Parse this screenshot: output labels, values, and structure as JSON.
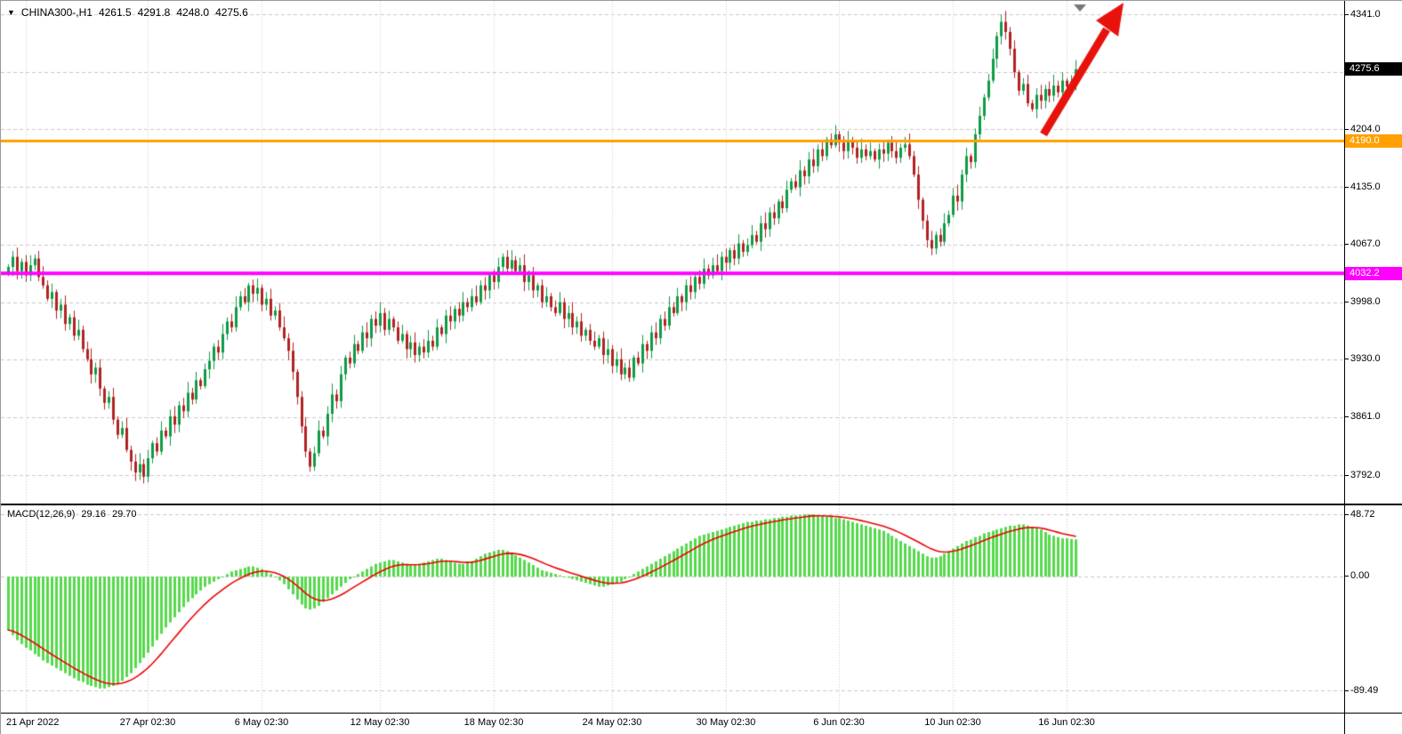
{
  "header": {
    "collapse_glyph": "▼",
    "symbol_period": "CHINA300-,H1",
    "open": "4261.5",
    "high": "4291.8",
    "low": "4248.0",
    "close": "4275.6"
  },
  "colors": {
    "background": "#FFFFFF",
    "grid": "#C9C9C9",
    "bull": "#0E9B45",
    "bear": "#B22222",
    "macd_hist": "#56D94C",
    "macd_signal": "#EE0000",
    "current_tag_bg": "#000000",
    "arrow": "#E8120C",
    "shift_marker": "#777777"
  },
  "chart_data": {
    "type": "candlestick_with_macd",
    "title": "CHINA300-,H1",
    "price_panel": {
      "range": [
        3758,
        4357
      ],
      "grid_values": [
        4341.0,
        4272.5,
        4204.0,
        4135.0,
        4067.0,
        3998.0,
        3930.0,
        3861.0,
        3792.0
      ],
      "y_axis": {
        "labels": [
          "4341.0",
          "4204.0",
          "4135.0",
          "4067.0",
          "3998.0",
          "3930.0",
          "3861.0",
          "3792.0"
        ]
      },
      "current_price": 4275.6,
      "current_price_label": "4275.6",
      "hlines": [
        {
          "value": 4190.0,
          "label": "4190.0",
          "color": "#FFA000",
          "width": 3
        },
        {
          "value": 4032.2,
          "label": "4032.2",
          "color": "#FF00FF",
          "width": 4
        }
      ],
      "first_open": 4032,
      "closes": [
        4040,
        4052,
        4035,
        4046,
        4030,
        4042,
        4050,
        4028,
        4018,
        4002,
        4010,
        3988,
        3995,
        3972,
        3980,
        3958,
        3965,
        3942,
        3930,
        3912,
        3920,
        3895,
        3878,
        3885,
        3858,
        3840,
        3848,
        3822,
        3808,
        3795,
        3805,
        3790,
        3812,
        3830,
        3820,
        3845,
        3838,
        3862,
        3852,
        3875,
        3868,
        3890,
        3882,
        3905,
        3898,
        3918,
        3928,
        3945,
        3938,
        3960,
        3975,
        3968,
        3992,
        4005,
        3998,
        4018,
        4008,
        4015,
        3995,
        4002,
        3982,
        3988,
        3968,
        3955,
        3940,
        3915,
        3885,
        3850,
        3820,
        3802,
        3818,
        3845,
        3838,
        3865,
        3888,
        3880,
        3912,
        3932,
        3925,
        3948,
        3940,
        3962,
        3955,
        3978,
        3970,
        3985,
        3965,
        3978,
        3968,
        3952,
        3960,
        3942,
        3950,
        3935,
        3945,
        3938,
        3952,
        3945,
        3968,
        3960,
        3982,
        3975,
        3990,
        3982,
        3998,
        3992,
        4005,
        3998,
        4018,
        4012,
        4030,
        4022,
        4040,
        4052,
        4038,
        4048,
        4035,
        4042,
        4022,
        4030,
        4012,
        4018,
        3998,
        4005,
        3992,
        3985,
        3998,
        3978,
        3985,
        3968,
        3975,
        3958,
        3965,
        3952,
        3945,
        3955,
        3935,
        3942,
        3922,
        3930,
        3912,
        3920,
        3908,
        3932,
        3925,
        3948,
        3940,
        3962,
        3955,
        3978,
        3970,
        3992,
        3985,
        4005,
        3998,
        4018,
        4010,
        4028,
        4020,
        4038,
        4030,
        4042,
        4035,
        4052,
        4045,
        4060,
        4050,
        4068,
        4058,
        4066,
        4078,
        4070,
        4092,
        4085,
        4105,
        4098,
        4118,
        4110,
        4132,
        4142,
        4135,
        4155,
        4148,
        4168,
        4160,
        4180,
        4172,
        4192,
        4185,
        4198,
        4188,
        4178,
        4190,
        4182,
        4170,
        4180,
        4172,
        4178,
        4168,
        4180,
        4175,
        4188,
        4178,
        4170,
        4182,
        4186,
        4172,
        4150,
        4120,
        4095,
        4072,
        4062,
        4078,
        4070,
        4092,
        4102,
        4125,
        4118,
        4150,
        4172,
        4165,
        4198,
        4220,
        4242,
        4262,
        4288,
        4315,
        4332,
        4320,
        4300,
        4272,
        4250,
        4258,
        4235,
        4228,
        4245,
        4238,
        4252,
        4244,
        4256,
        4248,
        4262,
        4255,
        4261.5,
        4275.6
      ]
    },
    "macd_panel": {
      "label": "MACD(12,26,9)",
      "macd_value": "29.16",
      "signal_value": "29.70",
      "range": [
        -107,
        56
      ],
      "grid_values": [
        48.72,
        0,
        -89.49
      ],
      "y_ticks": [
        "48.72",
        "0.00",
        "-89.49"
      ],
      "histogram": [
        -42,
        -46,
        -50,
        -53,
        -56,
        -58,
        -61,
        -63,
        -66,
        -68,
        -70,
        -72,
        -74,
        -76,
        -78,
        -80,
        -82,
        -83,
        -85,
        -86,
        -87,
        -88,
        -88,
        -87,
        -86,
        -84,
        -82,
        -79,
        -76,
        -72,
        -68,
        -64,
        -60,
        -55,
        -50,
        -45,
        -40,
        -36,
        -32,
        -28,
        -24,
        -20,
        -17,
        -14,
        -11,
        -8,
        -6,
        -4,
        -2,
        0,
        2,
        4,
        5,
        6,
        7,
        8,
        8,
        7,
        6,
        4,
        2,
        0,
        -3,
        -6,
        -10,
        -14,
        -18,
        -22,
        -25,
        -26,
        -25,
        -23,
        -20,
        -17,
        -14,
        -11,
        -8,
        -5,
        -2,
        0,
        2,
        4,
        6,
        8,
        10,
        11,
        12,
        13,
        13,
        12,
        11,
        10,
        9,
        9,
        10,
        11,
        12,
        13,
        14,
        14,
        13,
        12,
        11,
        10,
        10,
        11,
        12,
        14,
        16,
        18,
        19,
        20,
        21,
        21,
        20,
        19,
        17,
        15,
        13,
        11,
        9,
        7,
        5,
        4,
        3,
        2,
        1,
        0,
        -1,
        -2,
        -3,
        -4,
        -5,
        -6,
        -7,
        -8,
        -8,
        -7,
        -6,
        -5,
        -4,
        -2,
        0,
        2,
        4,
        6,
        8,
        10,
        12,
        14,
        16,
        18,
        20,
        22,
        24,
        26,
        28,
        30,
        32,
        33,
        34,
        35,
        36,
        37,
        38,
        39,
        40,
        41,
        42,
        43,
        43,
        44,
        44,
        45,
        45,
        46,
        46,
        47,
        47,
        48,
        48,
        48,
        49,
        49,
        49,
        48,
        48,
        47,
        47,
        46,
        46,
        45,
        44,
        43,
        42,
        41,
        40,
        39,
        38,
        37,
        36,
        34,
        32,
        30,
        28,
        26,
        24,
        22,
        20,
        18,
        16,
        15,
        15,
        16,
        18,
        20,
        22,
        24,
        26,
        28,
        29,
        31,
        32,
        34,
        35,
        36,
        37,
        38,
        39,
        40,
        40,
        41,
        41,
        40,
        39,
        38,
        37,
        35,
        33,
        32,
        31,
        30,
        30,
        29.5,
        29.16
      ]
    },
    "x_axis": {
      "labels": [
        "21 Apr 2022",
        "27 Apr 02:30",
        "6 May 02:30",
        "12 May 02:30",
        "18 May 02:30",
        "24 May 02:30",
        "30 May 02:30",
        "6 Jun 02:30",
        "10 Jun 02:30",
        "16 Jun 02:30"
      ],
      "bar_index": [
        4,
        32,
        58,
        85,
        111,
        138,
        164,
        190,
        216,
        242
      ]
    }
  },
  "annotations": {
    "trend_arrow": {
      "color": "#E8120C",
      "direction": "up-right"
    },
    "shift_marker": {
      "color": "#777777"
    }
  }
}
